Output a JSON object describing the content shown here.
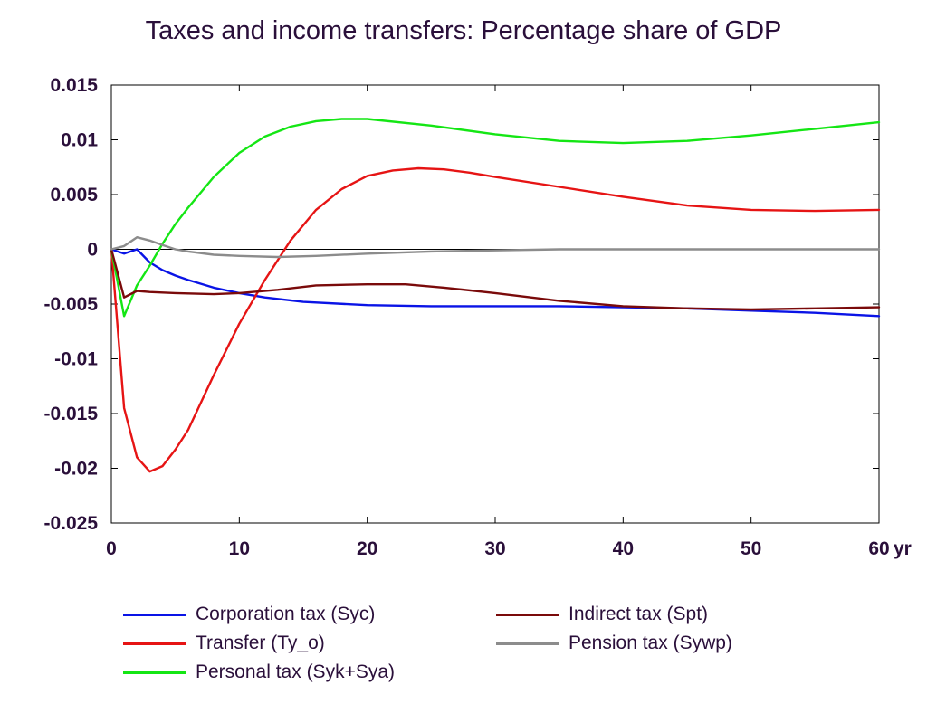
{
  "chart_data": {
    "type": "line",
    "title": "Taxes and income transfers: Percentage share of GDP",
    "xlabel": "",
    "ylabel": "",
    "x_unit_label": "yr",
    "xlim": [
      0,
      60
    ],
    "ylim": [
      -0.025,
      0.015
    ],
    "x_ticks": [
      0,
      10,
      20,
      30,
      40,
      50,
      60
    ],
    "x_tick_labels": [
      "0",
      "10",
      "20",
      "30",
      "40",
      "50",
      "60"
    ],
    "y_ticks": [
      0.015,
      0.01,
      0.005,
      0,
      -0.005,
      -0.01,
      -0.015,
      -0.02,
      -0.025
    ],
    "y_tick_labels": [
      "0.015",
      "0.01",
      "0.005",
      "0",
      "-0.005",
      "-0.01",
      "-0.015",
      "-0.02",
      "-0.025"
    ],
    "grid": false,
    "zero_line": true,
    "legend_position": "bottom",
    "series": [
      {
        "name": "Corporation tax (Syc)",
        "color": "#0a14e6",
        "x": [
          0,
          1,
          2,
          3,
          4,
          5,
          6,
          8,
          10,
          12,
          15,
          20,
          25,
          30,
          35,
          40,
          45,
          50,
          55,
          60
        ],
        "y": [
          0,
          -0.0004,
          0,
          -0.0012,
          -0.0019,
          -0.0024,
          -0.0028,
          -0.0035,
          -0.004,
          -0.0044,
          -0.0048,
          -0.0051,
          -0.0052,
          -0.0052,
          -0.0052,
          -0.0053,
          -0.0054,
          -0.0056,
          -0.0058,
          -0.0061
        ]
      },
      {
        "name": "Transfer (Ty_o)",
        "color": "#e61414",
        "x": [
          0,
          1,
          2,
          3,
          4,
          5,
          6,
          8,
          10,
          12,
          14,
          16,
          18,
          20,
          22,
          24,
          26,
          28,
          30,
          35,
          40,
          45,
          50,
          55,
          60
        ],
        "y": [
          0,
          -0.0145,
          -0.019,
          -0.0203,
          -0.0198,
          -0.0183,
          -0.0165,
          -0.0115,
          -0.0068,
          -0.0028,
          0.0008,
          0.0036,
          0.0055,
          0.0067,
          0.0072,
          0.0074,
          0.0073,
          0.007,
          0.0066,
          0.0057,
          0.0048,
          0.004,
          0.0036,
          0.0035,
          0.0036
        ]
      },
      {
        "name": "Personal tax (Syk+Sya)",
        "color": "#14e614",
        "x": [
          0,
          1,
          2,
          3,
          4,
          5,
          6,
          8,
          10,
          12,
          14,
          16,
          18,
          20,
          25,
          30,
          35,
          40,
          45,
          50,
          55,
          60
        ],
        "y": [
          0,
          -0.0061,
          -0.0033,
          -0.0015,
          0.0005,
          0.0023,
          0.0038,
          0.0066,
          0.0088,
          0.0103,
          0.0112,
          0.0117,
          0.0119,
          0.0119,
          0.0113,
          0.0105,
          0.0099,
          0.0097,
          0.0099,
          0.0104,
          0.011,
          0.0116
        ]
      },
      {
        "name": "Indirect tax (Spt)",
        "color": "#7a0a0a",
        "x": [
          0,
          1,
          2,
          3,
          5,
          8,
          10,
          13,
          16,
          20,
          23,
          26,
          30,
          35,
          40,
          45,
          50,
          55,
          60
        ],
        "y": [
          0,
          -0.0044,
          -0.0038,
          -0.0039,
          -0.004,
          -0.0041,
          -0.004,
          -0.0037,
          -0.0033,
          -0.0032,
          -0.0032,
          -0.0035,
          -0.004,
          -0.0047,
          -0.0052,
          -0.0054,
          -0.0055,
          -0.0054,
          -0.0053
        ]
      },
      {
        "name": "Pension tax (Sywp)",
        "color": "#8c8c8c",
        "x": [
          0,
          1,
          2,
          3,
          4,
          5,
          6,
          8,
          10,
          13,
          16,
          20,
          25,
          30,
          35,
          40,
          45,
          50,
          55,
          60
        ],
        "y": [
          0,
          0.0003,
          0.0011,
          0.0008,
          0.0004,
          0.0,
          -0.0002,
          -0.0005,
          -0.0006,
          -0.0007,
          -0.0006,
          -0.0004,
          -0.0002,
          -0.0001,
          0.0,
          0.0,
          0.0,
          0.0,
          0.0,
          0.0
        ]
      }
    ]
  },
  "legend": {
    "columns": [
      [
        0,
        1,
        2
      ],
      [
        3,
        4
      ]
    ]
  }
}
